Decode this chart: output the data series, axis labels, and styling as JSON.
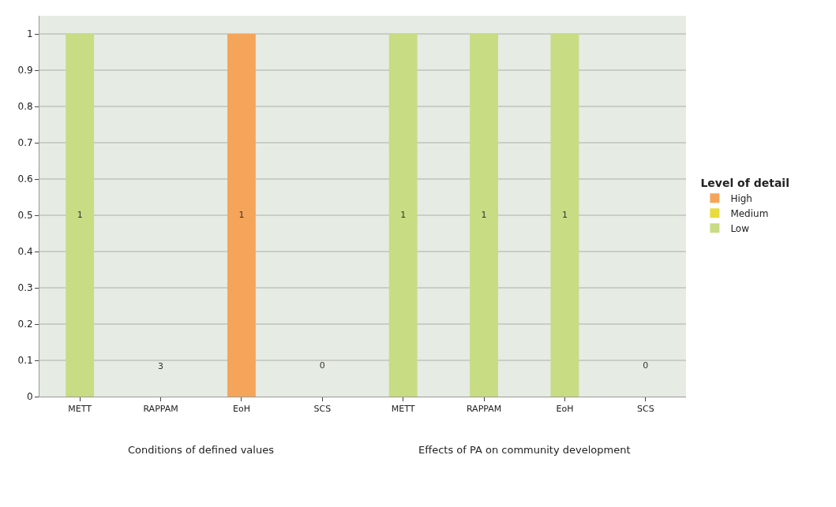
{
  "chart_data": {
    "type": "bar",
    "stacked": true,
    "legend_title": "Level of detail",
    "legend": "right",
    "grid": "y",
    "categories": [
      "METT",
      "RAPPAM",
      "EoH",
      "SCS",
      "METT",
      "RAPPAM",
      "EoH",
      "SCS"
    ],
    "series": [
      {
        "name": "High",
        "color": "#f5a55a",
        "values": [
          null,
          null,
          1,
          null,
          null,
          null,
          null,
          null
        ],
        "value_labels": [
          null,
          null,
          "1",
          null,
          null,
          null,
          null,
          null
        ]
      },
      {
        "name": "Medium",
        "color": "#e8dc3c",
        "values": [
          null,
          null,
          null,
          null,
          null,
          null,
          null,
          null
        ]
      },
      {
        "name": "Low",
        "color": "#c8dc84",
        "values": [
          1,
          0,
          null,
          0,
          1,
          1,
          1,
          0
        ],
        "value_labels": [
          "1",
          null,
          null,
          "0",
          "1",
          "1",
          "1",
          "0"
        ]
      }
    ],
    "ylim": [
      0,
      1.05
    ],
    "yticks": [
      0,
      0.1,
      0.2,
      0.3,
      0.4,
      0.5,
      0.6,
      0.7,
      0.8,
      0.9,
      1
    ],
    "annotations": [
      "Conditions of defined values",
      "Effects of PA on community development",
      "3"
    ]
  }
}
